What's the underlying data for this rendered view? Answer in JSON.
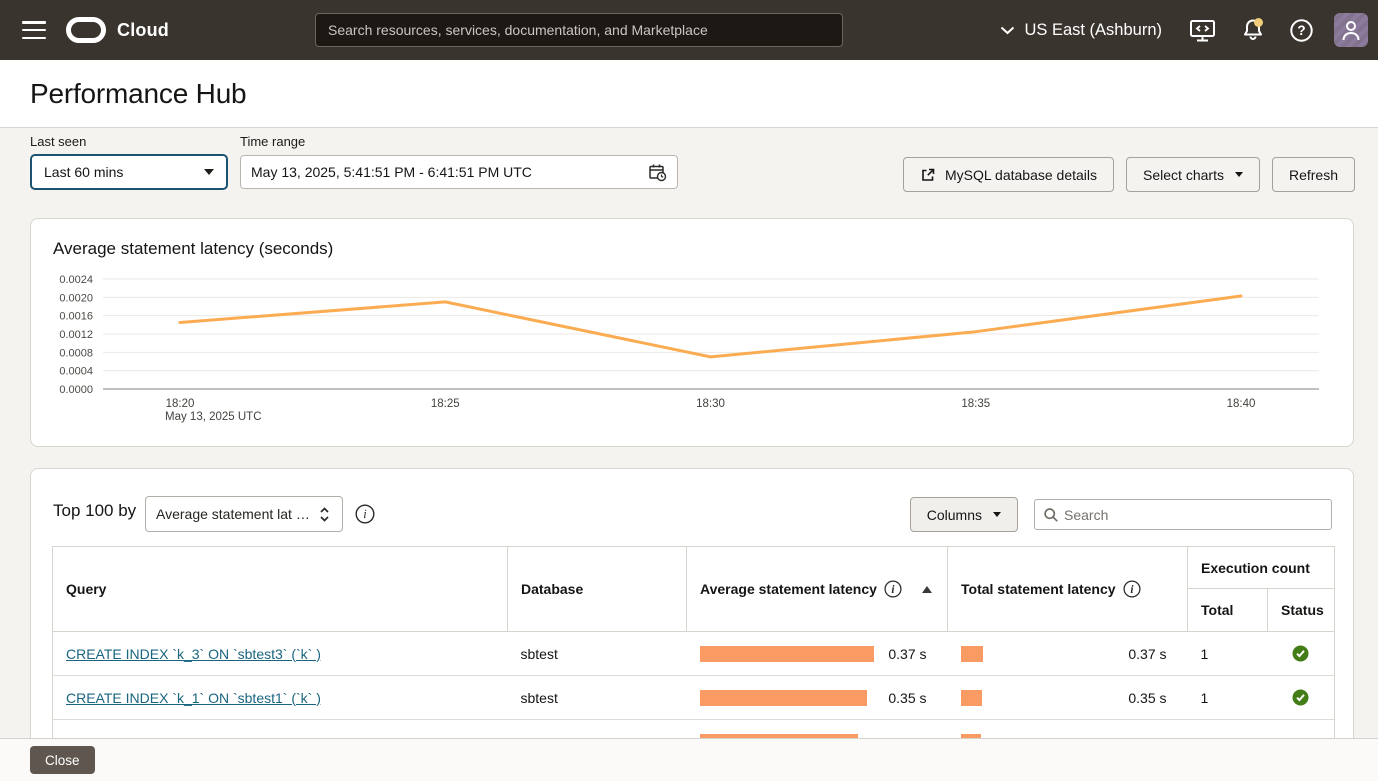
{
  "navbar": {
    "brand": "Cloud",
    "search_placeholder": "Search resources, services, documentation, and Marketplace",
    "region": "US East (Ashburn)"
  },
  "header": {
    "title": "Performance Hub"
  },
  "filters": {
    "last_seen_label": "Last seen",
    "last_seen_value": "Last 60 mins",
    "time_range_label": "Time range",
    "time_range_value": "May 13, 2025, 5:41:51 PM - 6:41:51 PM UTC",
    "mysql_details_label": "MySQL database details",
    "select_charts_label": "Select charts",
    "refresh_label": "Refresh"
  },
  "chart_data": {
    "type": "line",
    "title": "Average statement latency (seconds)",
    "x": [
      "18:20",
      "18:25",
      "18:30",
      "18:35",
      "18:40"
    ],
    "x_sublabel": "May 13, 2025 UTC",
    "series": [
      {
        "name": "Average statement latency",
        "values": [
          0.00145,
          0.0019,
          0.0007,
          0.00125,
          0.00203
        ]
      }
    ],
    "ylim": [
      0,
      0.0024
    ],
    "yticks": [
      0.0,
      0.0004,
      0.0008,
      0.0012,
      0.0016,
      0.002,
      0.0024
    ],
    "line_color": "#fbac52",
    "grid": true,
    "legend_position": "none",
    "xlabel": "",
    "ylabel": ""
  },
  "table": {
    "top_label": "Top 100 by",
    "sort_by_value": "Average statement lat …",
    "columns_label": "Columns",
    "search_placeholder": "Search",
    "headers": {
      "query": "Query",
      "database": "Database",
      "avg_latency": "Average statement latency",
      "total_latency": "Total statement latency",
      "execution_count": "Execution count",
      "exec_total": "Total",
      "exec_status": "Status"
    },
    "rows": [
      {
        "query": "CREATE INDEX `k_3` ON `sbtest3` (`k` )",
        "database": "sbtest",
        "avg_value": "0.37 s",
        "avg_bar": 174,
        "total_value": "0.37 s",
        "total_bar": 22,
        "count": "1",
        "status": "success"
      },
      {
        "query": "CREATE INDEX `k_1` ON `sbtest1` (`k` )",
        "database": "sbtest",
        "avg_value": "0.35 s",
        "avg_bar": 167,
        "total_value": "0.35 s",
        "total_bar": 21,
        "count": "1",
        "status": "success"
      },
      {
        "query": "",
        "database": "",
        "avg_value": "",
        "avg_bar": 158,
        "total_value": "",
        "total_bar": 20,
        "count": "",
        "status": "partial"
      }
    ]
  },
  "footer": {
    "close_label": "Close"
  },
  "icons": {
    "help_glyph": "?",
    "info_glyph": "i"
  },
  "colors": {
    "navbar_bg": "#3a342e",
    "accent_orange_bar": "#f99b63",
    "chart_line": "#fbac52",
    "link_teal": "#19657f",
    "status_green": "#437d17",
    "avatar_purple": "#8d7b9d",
    "notification_dot": "#f2cd79",
    "focus_border": "#1b5270"
  }
}
